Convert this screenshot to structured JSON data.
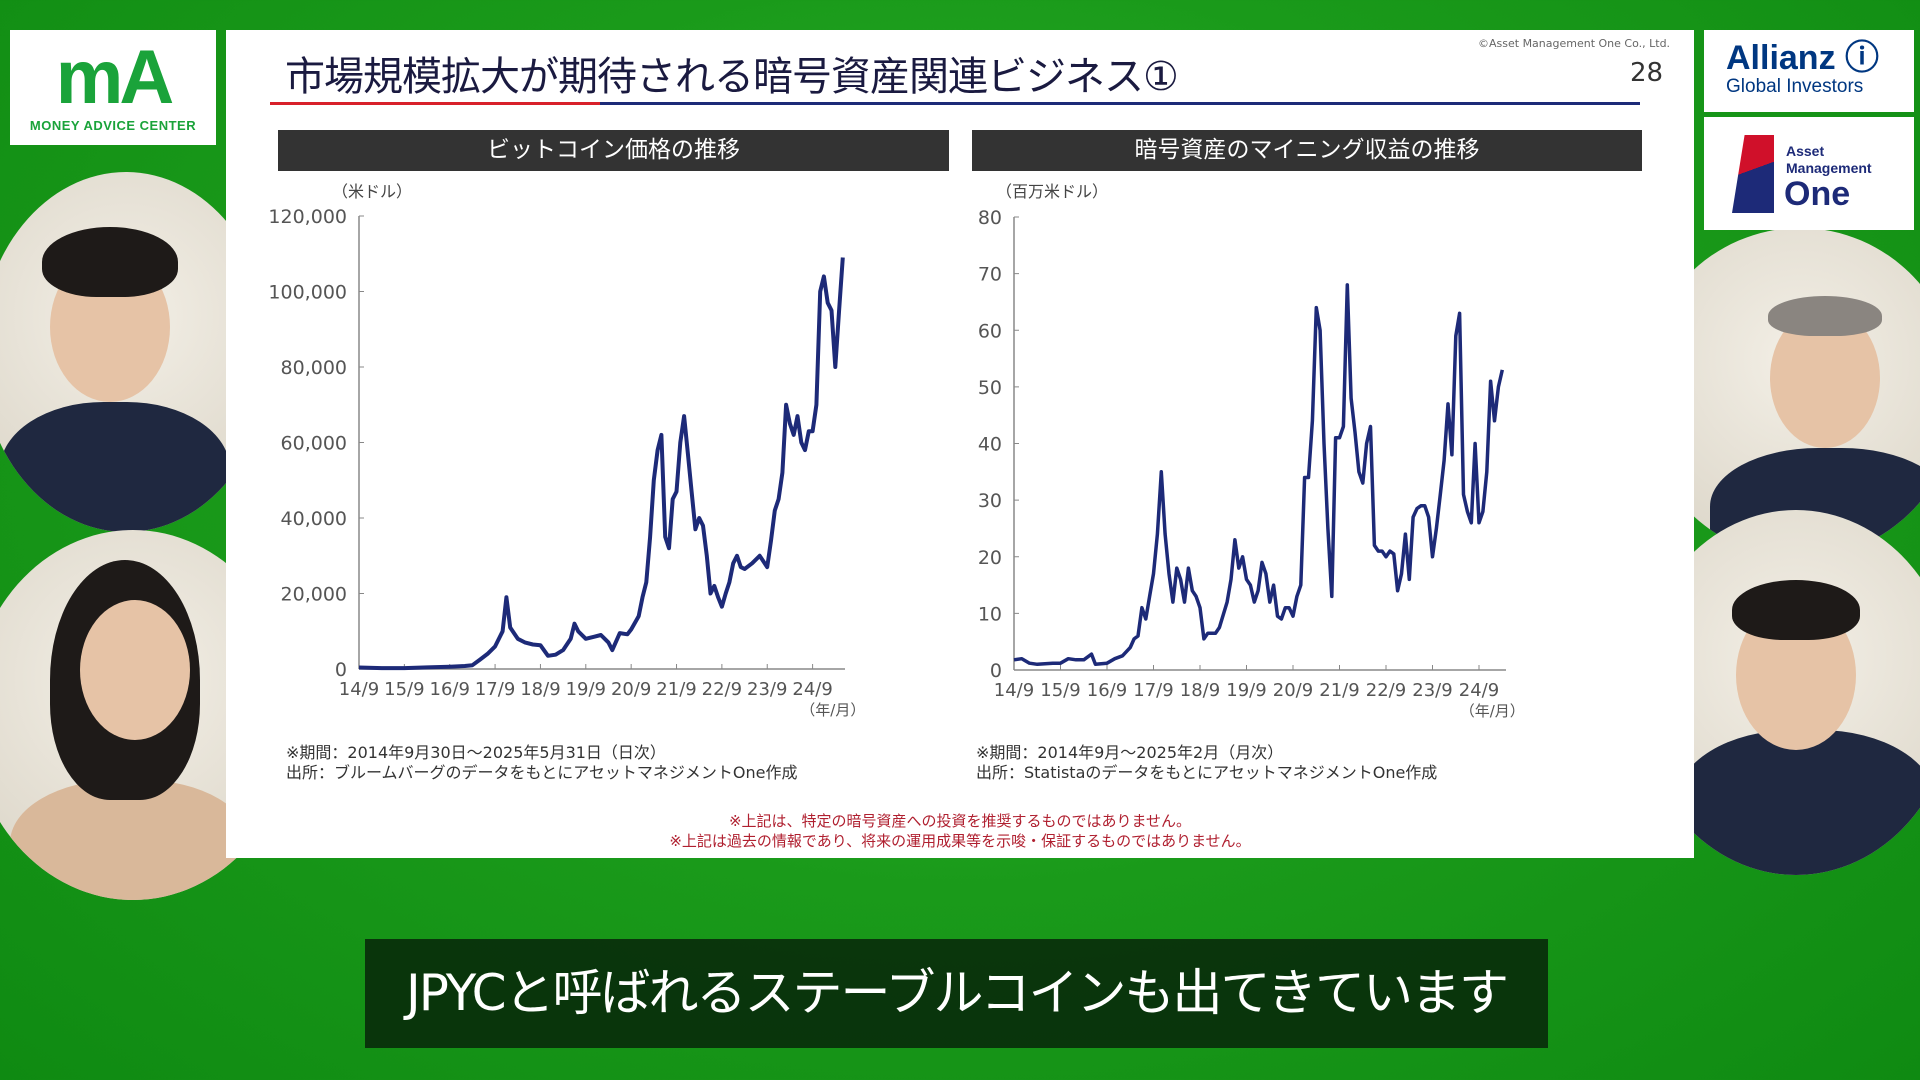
{
  "logos": {
    "money_advice": {
      "mark": "mA",
      "text": "MONEY ADVICE CENTER"
    },
    "allianz": {
      "name": "Allianz",
      "sub": "Global Investors"
    },
    "am_one": {
      "line1": "Asset",
      "line2": "Management",
      "name": "One"
    }
  },
  "slide": {
    "title": "市場規模拡大が期待される暗号資産関連ビジネス①",
    "copyright": "©Asset Management One Co., Ltd.",
    "page_number": "28",
    "warnings": [
      "※上記は、特定の暗号資産への投資を推奨するものではありません。",
      "※上記は過去の情報であり、将来の運用成果等を示唆・保証するものではありません。"
    ]
  },
  "colors": {
    "line": "#1d2a78",
    "accent_red": "#d8202a",
    "background_green": "#1a9a1a"
  },
  "chart_data": [
    {
      "type": "line",
      "title": "ビットコイン価格の推移",
      "ylabel": "（米ドル）",
      "xlabel": "（年/月）",
      "ylim": [
        0,
        120000
      ],
      "yticks": [
        "0",
        "20,000",
        "40,000",
        "60,000",
        "80,000",
        "100,000",
        "120,000"
      ],
      "ytick_values": [
        0,
        20000,
        40000,
        60000,
        80000,
        100000,
        120000
      ],
      "xticks": [
        "14/9",
        "15/9",
        "16/9",
        "17/9",
        "18/9",
        "19/9",
        "20/9",
        "21/9",
        "22/9",
        "23/9",
        "24/9"
      ],
      "x_unit": "months since 2014/9",
      "x_max": 128,
      "notes": [
        "※期間：2014年9月30日～2025年5月31日（日次）",
        "出所：ブルームバーグのデータをもとにアセットマネジメントOne作成"
      ],
      "series": [
        {
          "name": "Bitcoin",
          "points": [
            [
              0,
              400
            ],
            [
              6,
              250
            ],
            [
              12,
              230
            ],
            [
              18,
              420
            ],
            [
              24,
              600
            ],
            [
              28,
              800
            ],
            [
              30,
              1000
            ],
            [
              32,
              2500
            ],
            [
              34,
              4000
            ],
            [
              36,
              6000
            ],
            [
              38,
              10000
            ],
            [
              39,
              19000
            ],
            [
              40,
              11000
            ],
            [
              42,
              8000
            ],
            [
              44,
              7000
            ],
            [
              46,
              6500
            ],
            [
              48,
              6300
            ],
            [
              50,
              3500
            ],
            [
              52,
              3800
            ],
            [
              54,
              5000
            ],
            [
              56,
              8000
            ],
            [
              57,
              12000
            ],
            [
              58,
              10000
            ],
            [
              60,
              8000
            ],
            [
              62,
              8500
            ],
            [
              64,
              9000
            ],
            [
              66,
              7000
            ],
            [
              67,
              5000
            ],
            [
              69,
              9500
            ],
            [
              71,
              9200
            ],
            [
              72,
              10500
            ],
            [
              74,
              14000
            ],
            [
              75,
              19000
            ],
            [
              76,
              23000
            ],
            [
              77,
              35000
            ],
            [
              78,
              50000
            ],
            [
              79,
              58000
            ],
            [
              80,
              62000
            ],
            [
              81,
              35000
            ],
            [
              82,
              32000
            ],
            [
              83,
              45000
            ],
            [
              84,
              47000
            ],
            [
              85,
              60000
            ],
            [
              86,
              67000
            ],
            [
              87,
              57000
            ],
            [
              88,
              47000
            ],
            [
              89,
              37000
            ],
            [
              90,
              40000
            ],
            [
              91,
              38000
            ],
            [
              92,
              30000
            ],
            [
              93,
              20000
            ],
            [
              94,
              22000
            ],
            [
              95,
              19000
            ],
            [
              96,
              16500
            ],
            [
              97,
              20000
            ],
            [
              98,
              23000
            ],
            [
              99,
              28000
            ],
            [
              100,
              30000
            ],
            [
              101,
              27000
            ],
            [
              102,
              26500
            ],
            [
              104,
              28000
            ],
            [
              106,
              30000
            ],
            [
              108,
              27000
            ],
            [
              109,
              34000
            ],
            [
              110,
              42000
            ],
            [
              111,
              45000
            ],
            [
              112,
              52000
            ],
            [
              113,
              70000
            ],
            [
              114,
              65000
            ],
            [
              115,
              62000
            ],
            [
              116,
              67000
            ],
            [
              117,
              60000
            ],
            [
              118,
              58000
            ],
            [
              119,
              63000
            ],
            [
              120,
              63000
            ],
            [
              121,
              70000
            ],
            [
              122,
              100000
            ],
            [
              123,
              104000
            ],
            [
              124,
              97000
            ],
            [
              125,
              95000
            ],
            [
              126,
              80000
            ],
            [
              127,
              95000
            ],
            [
              128,
              109000
            ]
          ]
        }
      ]
    },
    {
      "type": "line",
      "title": "暗号資産のマイニング収益の推移",
      "ylabel": "（百万米ドル）",
      "xlabel": "（年/月）",
      "ylim": [
        0,
        80
      ],
      "yticks": [
        "0",
        "10",
        "20",
        "30",
        "40",
        "50",
        "60",
        "70",
        "80"
      ],
      "ytick_values": [
        0,
        10,
        20,
        30,
        40,
        50,
        60,
        70,
        80
      ],
      "xticks": [
        "14/9",
        "15/9",
        "16/9",
        "17/9",
        "18/9",
        "19/9",
        "20/9",
        "21/9",
        "22/9",
        "23/9",
        "24/9"
      ],
      "x_unit": "months since 2014/9",
      "x_max": 126,
      "notes": [
        "※期間：2014年9月～2025年2月（月次）",
        "出所：StatistaのデータをもとにアセットマネジメントOne作成"
      ],
      "series": [
        {
          "name": "Mining revenue",
          "points": [
            [
              0,
              1.8
            ],
            [
              2,
              2
            ],
            [
              4,
              1.2
            ],
            [
              6,
              1
            ],
            [
              8,
              1.1
            ],
            [
              10,
              1.2
            ],
            [
              12,
              1.2
            ],
            [
              14,
              2
            ],
            [
              16,
              1.8
            ],
            [
              18,
              1.8
            ],
            [
              20,
              2.8
            ],
            [
              21,
              1
            ],
            [
              24,
              1.2
            ],
            [
              26,
              2
            ],
            [
              28,
              2.5
            ],
            [
              30,
              4
            ],
            [
              31,
              5.5
            ],
            [
              32,
              6
            ],
            [
              33,
              11
            ],
            [
              34,
              9
            ],
            [
              35,
              13
            ],
            [
              36,
              17
            ],
            [
              37,
              24
            ],
            [
              38,
              35
            ],
            [
              39,
              24
            ],
            [
              40,
              17
            ],
            [
              41,
              12
            ],
            [
              42,
              18
            ],
            [
              43,
              16
            ],
            [
              44,
              12
            ],
            [
              45,
              18
            ],
            [
              46,
              14
            ],
            [
              47,
              13
            ],
            [
              48,
              11
            ],
            [
              49,
              5.5
            ],
            [
              50,
              6.5
            ],
            [
              52,
              6.5
            ],
            [
              53,
              7.5
            ],
            [
              55,
              12
            ],
            [
              56,
              16
            ],
            [
              57,
              23
            ],
            [
              58,
              18
            ],
            [
              59,
              20
            ],
            [
              60,
              16
            ],
            [
              61,
              15
            ],
            [
              62,
              12
            ],
            [
              63,
              14
            ],
            [
              64,
              19
            ],
            [
              65,
              17
            ],
            [
              66,
              12
            ],
            [
              67,
              15
            ],
            [
              68,
              9.5
            ],
            [
              69,
              9
            ],
            [
              70,
              11
            ],
            [
              71,
              11
            ],
            [
              72,
              9.5
            ],
            [
              73,
              13
            ],
            [
              74,
              15
            ],
            [
              75,
              34
            ],
            [
              76,
              34
            ],
            [
              77,
              44
            ],
            [
              78,
              64
            ],
            [
              79,
              60
            ],
            [
              80,
              40
            ],
            [
              81,
              25
            ],
            [
              82,
              13
            ],
            [
              83,
              41
            ],
            [
              84,
              41
            ],
            [
              85,
              43
            ],
            [
              86,
              68
            ],
            [
              87,
              48
            ],
            [
              88,
              42
            ],
            [
              89,
              35
            ],
            [
              90,
              33
            ],
            [
              91,
              40
            ],
            [
              92,
              43
            ],
            [
              93,
              22
            ],
            [
              94,
              21
            ],
            [
              95,
              21
            ],
            [
              96,
              20
            ],
            [
              97,
              21
            ],
            [
              98,
              20.5
            ],
            [
              99,
              14
            ],
            [
              100,
              17
            ],
            [
              101,
              24
            ],
            [
              102,
              16
            ],
            [
              103,
              27
            ],
            [
              104,
              28.5
            ],
            [
              105,
              29
            ],
            [
              106,
              29
            ],
            [
              107,
              27
            ],
            [
              108,
              20
            ],
            [
              109,
              25
            ],
            [
              110,
              31
            ],
            [
              111,
              37
            ],
            [
              112,
              47
            ],
            [
              113,
              38
            ],
            [
              114,
              59
            ],
            [
              115,
              63
            ],
            [
              116,
              31
            ],
            [
              117,
              28
            ],
            [
              118,
              26
            ],
            [
              119,
              40
            ],
            [
              120,
              26
            ],
            [
              121,
              28
            ],
            [
              122,
              35
            ],
            [
              123,
              51
            ],
            [
              124,
              44
            ],
            [
              125,
              50
            ],
            [
              126,
              53
            ]
          ]
        }
      ]
    }
  ],
  "subtitle": "JPYCと呼ばれるステーブルコインも出てきています"
}
